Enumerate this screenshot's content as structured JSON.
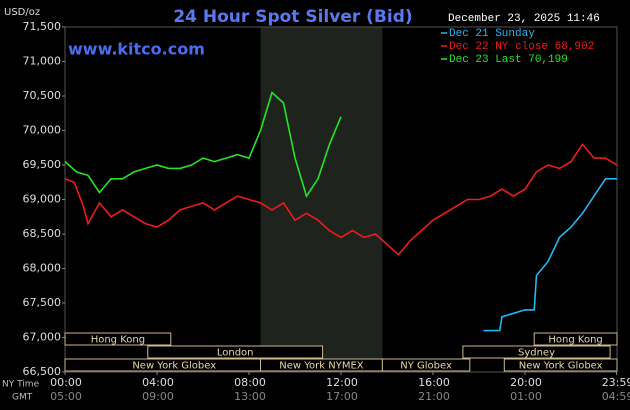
{
  "chart_data": {
    "type": "line",
    "title": "24 Hour Spot Silver (Bid)",
    "y_unit": "USD/oz",
    "watermark": "www.kitco.com",
    "timestamp": "December 23, 2025 11:46",
    "xlim": [
      0,
      24
    ],
    "xticks": [
      {
        "value": 0,
        "label": "00:00"
      },
      {
        "value": 4,
        "label": "04:00"
      },
      {
        "value": 8,
        "label": "08:00"
      },
      {
        "value": 12,
        "label": "12:00"
      },
      {
        "value": 16,
        "label": "16:00"
      },
      {
        "value": 20,
        "label": "20:00"
      },
      {
        "value": 23.98,
        "label": "23:59"
      }
    ],
    "gmt_ticks": [
      "05:00",
      "09:00",
      "13:00",
      "17:00",
      "21:00",
      "01:00",
      "04:59"
    ],
    "time_row_labels": [
      "NY Time",
      "GMT"
    ],
    "ylim": [
      66.5,
      71.5
    ],
    "yticks": [
      {
        "value": 66.5,
        "label": "66,500"
      },
      {
        "value": 67,
        "label": "67,000"
      },
      {
        "value": 67.5,
        "label": "67,500"
      },
      {
        "value": 68,
        "label": "68,000"
      },
      {
        "value": 68.5,
        "label": "68,500"
      },
      {
        "value": 69,
        "label": "69,000"
      },
      {
        "value": 69.5,
        "label": "69,500"
      },
      {
        "value": 70,
        "label": "70,000"
      },
      {
        "value": 70.5,
        "label": "70,500"
      },
      {
        "value": 71,
        "label": "71,000"
      },
      {
        "value": 71.5,
        "label": "71,500"
      }
    ],
    "highlight_xrange": [
      8.5,
      13.8
    ],
    "series": [
      {
        "name": "Dec 21 Sunday",
        "color": "#22b8f0",
        "x": [
          18.2,
          18.9,
          19.0,
          20.0,
          20.4,
          20.5,
          21.0,
          21.5,
          22.0,
          22.5,
          23.0,
          23.5,
          24.0
        ],
        "values": [
          67.1,
          67.1,
          67.3,
          67.4,
          67.4,
          67.9,
          68.1,
          68.45,
          68.6,
          68.8,
          69.05,
          69.3,
          69.3
        ]
      },
      {
        "name": "Dec 22 NY close 68,902",
        "color": "#ee1c1c",
        "x": [
          0,
          0.4,
          0.8,
          1.0,
          1.5,
          2.0,
          2.5,
          3.0,
          3.5,
          4.0,
          4.5,
          5.0,
          5.5,
          6.0,
          6.5,
          7.0,
          7.5,
          8.0,
          8.5,
          9.0,
          9.5,
          10.0,
          10.5,
          11.0,
          11.5,
          12.0,
          12.5,
          13.0,
          13.5,
          14.0,
          14.5,
          15.0,
          15.5,
          16.0,
          16.5,
          17.0,
          17.5,
          18.0,
          18.5,
          19.0,
          19.5,
          20.0,
          20.5,
          21.0,
          21.5,
          22.0,
          22.5,
          23.0,
          23.5,
          24.0
        ],
        "values": [
          69.3,
          69.25,
          68.9,
          68.65,
          68.95,
          68.75,
          68.85,
          68.75,
          68.65,
          68.6,
          68.7,
          68.85,
          68.9,
          68.95,
          68.85,
          68.95,
          69.05,
          69.0,
          68.95,
          68.85,
          68.95,
          68.7,
          68.8,
          68.7,
          68.55,
          68.45,
          68.55,
          68.45,
          68.5,
          68.35,
          68.2,
          68.4,
          68.55,
          68.7,
          68.8,
          68.9,
          69.0,
          69.0,
          69.05,
          69.15,
          69.05,
          69.15,
          69.4,
          69.5,
          69.45,
          69.55,
          69.8,
          69.6,
          69.6,
          69.5
        ]
      },
      {
        "name": "Dec 23 Last 70,199",
        "color": "#22e622",
        "x": [
          0,
          0.5,
          1.0,
          1.5,
          2.0,
          2.5,
          3.0,
          3.5,
          4.0,
          4.5,
          5.0,
          5.5,
          6.0,
          6.5,
          7.0,
          7.5,
          8.0,
          8.5,
          9.0,
          9.5,
          10.0,
          10.5,
          11.0,
          11.5,
          12.0
        ],
        "values": [
          69.55,
          69.4,
          69.35,
          69.1,
          69.3,
          69.3,
          69.4,
          69.45,
          69.5,
          69.45,
          69.45,
          69.5,
          69.6,
          69.55,
          69.6,
          69.65,
          69.6,
          70.0,
          70.55,
          70.4,
          69.6,
          69.05,
          69.3,
          69.8,
          70.2
        ]
      }
    ],
    "sessions": [
      {
        "name": "Hong Kong",
        "start": 0,
        "end": 4.6,
        "row": 0
      },
      {
        "name": "London",
        "start": 3.6,
        "end": 11.2,
        "row": 1
      },
      {
        "name": "New York Globex",
        "start": 0,
        "end": 9.5,
        "row": 2
      },
      {
        "name": "New York NYMEX",
        "start": 8.5,
        "end": 13.8,
        "row": 2
      },
      {
        "name": "NY Globex",
        "start": 13.8,
        "end": 17.6,
        "row": 2
      },
      {
        "name": "Hong Kong",
        "start": 20.4,
        "end": 24,
        "row": 0
      },
      {
        "name": "Sydney",
        "start": 17.3,
        "end": 23.7,
        "row": 1
      },
      {
        "name": "New York Globex",
        "start": 19.1,
        "end": 24,
        "row": 2
      }
    ]
  }
}
